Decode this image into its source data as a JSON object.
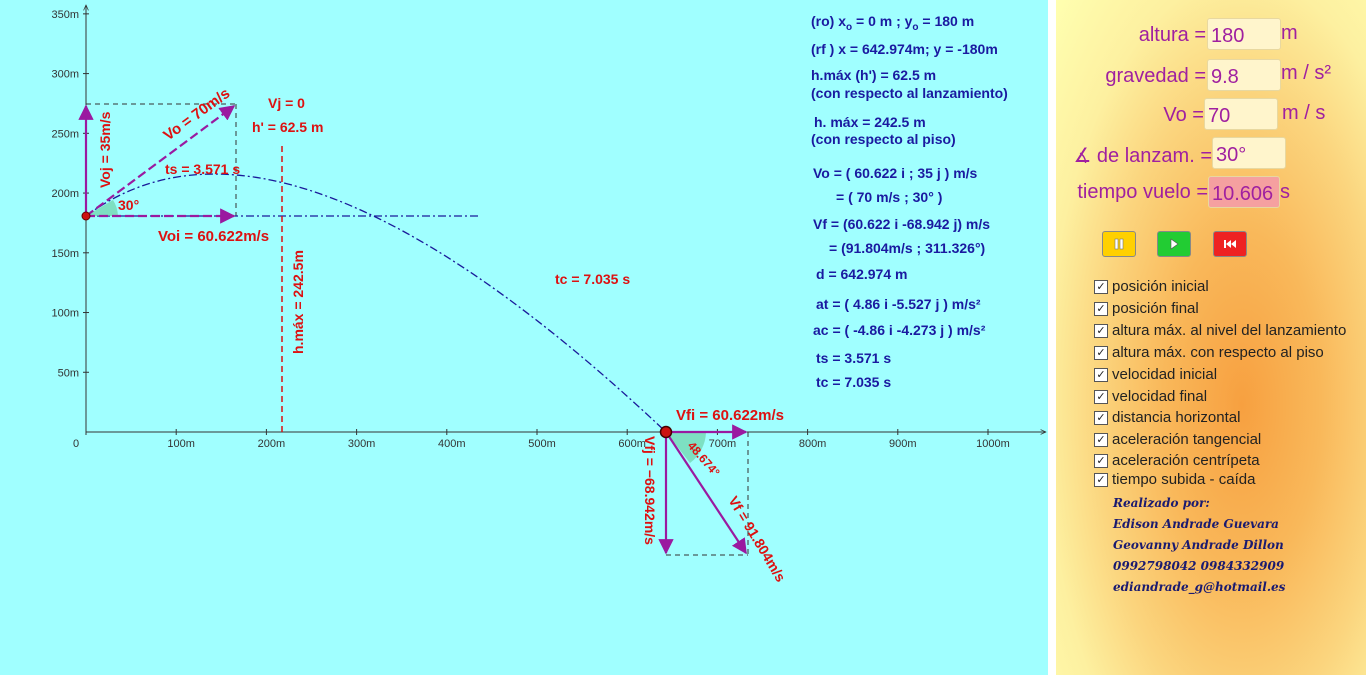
{
  "info": {
    "ro": "(ro) x",
    "ro_mid": " = 0 m ; y",
    "ro_end": " = 180 m",
    "sub_o": "o",
    "rf": "(rf ) x = 642.974m; y = -180m",
    "hmax1": "h.máx (h') = 62.5 m",
    "hmax1_note": "(con respecto al lanzamiento)",
    "hmax2": "h. máx = 242.5 m",
    "hmax2_note": "(con respecto al piso)",
    "vo1": "Vo = ( 60.622 i ; 35 j ) m/s",
    "vo2": "= ( 70 m/s ; 30° )",
    "vf1": "Vf = (60.622 i -68.942 j) m/s",
    "vf2": "= (91.804m/s ; 311.326°)",
    "d": "d = 642.974 m",
    "at": "at = ( 4.86 i -5.527 j ) m/s²",
    "ac": "ac = ( -4.86 i -4.273 j ) m/s²",
    "ts": "ts = 3.571 s",
    "tc": "tc = 7.035 s"
  },
  "graph": {
    "y_ticks": [
      "350m",
      "300m",
      "250m",
      "200m",
      "150m",
      "100m",
      "50m"
    ],
    "x_ticks": [
      "0",
      "100m",
      "200m",
      "300m",
      "400m",
      "500m",
      "600m",
      "700m",
      "800m",
      "900m",
      "1000m"
    ],
    "labels": {
      "vj": "Vj = 0",
      "hprime": "h' = 62.5 m",
      "vo": "Vo = 70m/s",
      "voj": "Voj = 35m/s",
      "ts": "ts = 3.571 s",
      "angle": "30°",
      "voi": "Voi = 60.622m/s",
      "hmax": "h.máx = 242.5m",
      "tc": "tc = 7.035 s",
      "vfi": "Vfi = 60.622m/s",
      "vfj": "Vfj = −68.942m/s",
      "vf": "Vf = 91.804m/s",
      "angle2": "48.674°"
    }
  },
  "panel": {
    "altura_label": "altura =",
    "altura_value": "180",
    "altura_unit": "m",
    "gravedad_label": "gravedad =",
    "gravedad_value": "9.8",
    "gravedad_unit": "m / s²",
    "vo_label": "Vo =",
    "vo_value": "70",
    "vo_unit": "m / s",
    "angulo_label": "∡ de lanzam. =",
    "angulo_value": "30°",
    "tiempo_label": "tiempo vuelo =",
    "tiempo_value": "10.606",
    "tiempo_unit": "s",
    "buttons": {
      "pause": "pause-icon",
      "play": "play-icon",
      "reset": "rewind-icon"
    },
    "checkboxes": [
      "posición inicial",
      "posición final",
      "altura máx. al nivel del lanzamiento",
      "altura máx. con respecto al piso",
      "velocidad inicial",
      "velocidad final",
      "distancia horizontal",
      "aceleración tangencial",
      "aceleración centrípeta",
      "tiempo subida - caída"
    ],
    "credits": [
      "Realizado por:",
      "Edison Andrade Guevara",
      "Geovanny Andrade Dillon",
      "0992798042   0984332909",
      "ediandrade_g@hotmail.es"
    ]
  },
  "colors": {
    "graph_bg": "#a0ffff",
    "trajectory": "#1a1a9a",
    "vector": "#9a1aa0",
    "guide": "#dd1111",
    "panel_text": "#a020a0"
  }
}
